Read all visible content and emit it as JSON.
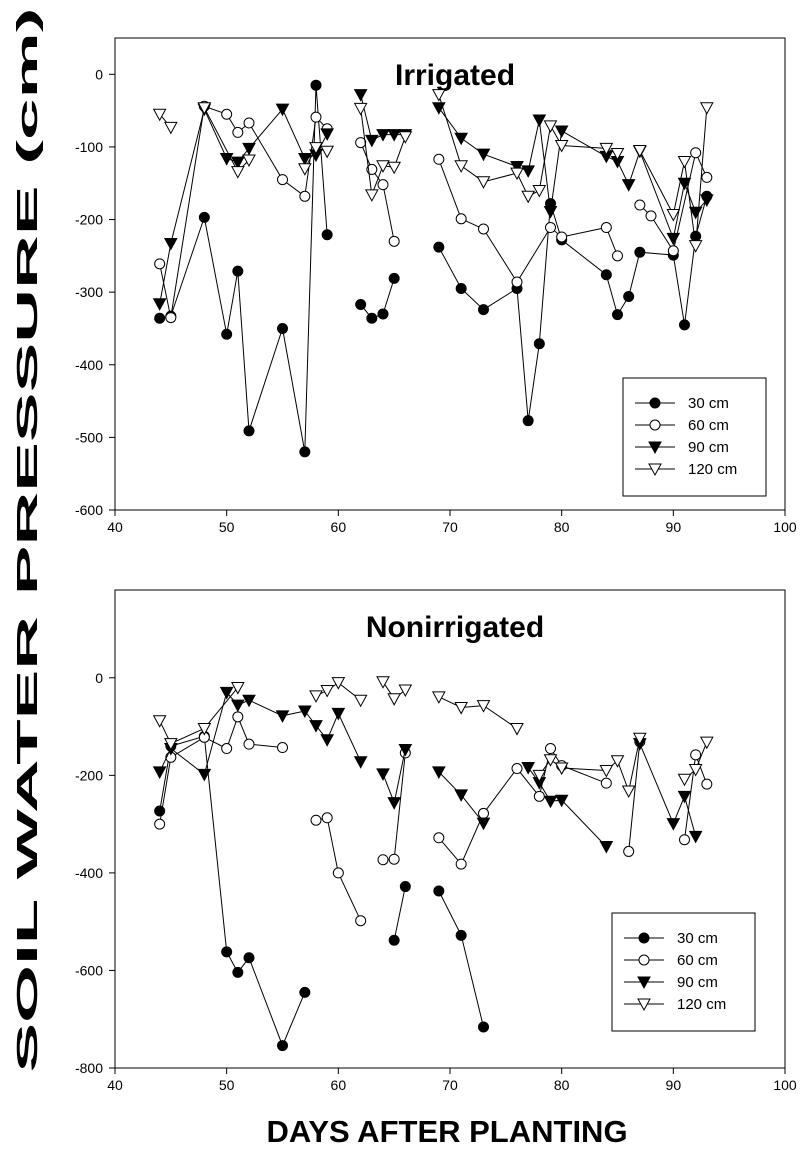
{
  "figure": {
    "ylabel": "SOIL WATER PRESSURE (cm)",
    "xlabel": "DAYS AFTER PLANTING"
  },
  "chart_data": [
    {
      "type": "line",
      "title": "Irrigated",
      "xlim": [
        40,
        100
      ],
      "ylim": [
        -600,
        50
      ],
      "xticks": [
        40,
        50,
        60,
        70,
        80,
        90,
        100
      ],
      "yticks": [
        -600,
        -500,
        -400,
        -300,
        -200,
        -100,
        0
      ],
      "legend": "bottom-right",
      "series": [
        {
          "name": "30 cm",
          "marker": "filled-circle",
          "segments": [
            [
              [
                44,
                -336
              ],
              [
                45,
                -333
              ],
              [
                48,
                -197
              ],
              [
                50,
                -358
              ],
              [
                51,
                -271
              ],
              [
                52,
                -491
              ],
              [
                55,
                -350
              ],
              [
                57,
                -520
              ],
              [
                58,
                -15
              ],
              [
                59,
                -221
              ]
            ],
            [
              [
                62,
                -317
              ],
              [
                63,
                -336
              ],
              [
                64,
                -330
              ],
              [
                65,
                -281
              ]
            ],
            [
              [
                69,
                -238
              ],
              [
                71,
                -295
              ],
              [
                73,
                -324
              ],
              [
                76,
                -295
              ],
              [
                77,
                -477
              ],
              [
                78,
                -371
              ],
              [
                79,
                -178
              ],
              [
                80,
                -228
              ],
              [
                84,
                -276
              ],
              [
                85,
                -331
              ],
              [
                86,
                -306
              ],
              [
                87,
                -245
              ],
              [
                90,
                -249
              ],
              [
                91,
                -345
              ],
              [
                92,
                -223
              ],
              [
                93,
                -168
              ]
            ]
          ]
        },
        {
          "name": "60 cm",
          "marker": "open-circle",
          "segments": [
            [
              [
                44,
                -261
              ],
              [
                45,
                -335
              ],
              [
                48,
                -44
              ],
              [
                50,
                -55
              ],
              [
                51,
                -80
              ],
              [
                52,
                -67
              ],
              [
                55,
                -145
              ],
              [
                57,
                -168
              ],
              [
                58,
                -59
              ],
              [
                59,
                -75
              ]
            ],
            [
              [
                62,
                -94
              ],
              [
                63,
                -131
              ],
              [
                64,
                -152
              ],
              [
                65,
                -230
              ]
            ],
            [
              [
                69,
                -117
              ],
              [
                71,
                -199
              ],
              [
                73,
                -213
              ],
              [
                76,
                -286
              ],
              [
                79,
                -211
              ],
              [
                80,
                -224
              ],
              [
                84,
                -211
              ],
              [
                85,
                -250
              ]
            ],
            [
              [
                87,
                -180
              ],
              [
                88,
                -195
              ],
              [
                90,
                -243
              ],
              [
                92,
                -108
              ],
              [
                93,
                -142
              ]
            ]
          ]
        },
        {
          "name": "90 cm",
          "marker": "filled-triangle",
          "segments": [
            [
              [
                44,
                -316
              ],
              [
                45,
                -233
              ],
              [
                48,
                -48
              ],
              [
                50,
                -116
              ],
              [
                51,
                -121
              ],
              [
                52,
                -102
              ],
              [
                55,
                -48
              ],
              [
                57,
                -116
              ],
              [
                58,
                -111
              ],
              [
                59,
                -82
              ]
            ],
            [
              [
                62,
                -28
              ],
              [
                63,
                -91
              ],
              [
                64,
                -83
              ],
              [
                65,
                -83
              ],
              [
                66,
                -83
              ]
            ],
            [
              [
                69,
                -46
              ],
              [
                71,
                -88
              ],
              [
                73,
                -110
              ],
              [
                76,
                -127
              ],
              [
                77,
                -133
              ],
              [
                78,
                -63
              ],
              [
                79,
                -189
              ],
              [
                80,
                -78
              ],
              [
                84,
                -113
              ],
              [
                85,
                -120
              ],
              [
                86,
                -152
              ],
              [
                87,
                -106
              ],
              [
                90,
                -226
              ],
              [
                91,
                -150
              ],
              [
                92,
                -190
              ],
              [
                93,
                -173
              ]
            ]
          ]
        },
        {
          "name": "120 cm",
          "marker": "open-triangle",
          "segments": [
            [
              [
                44,
                -55
              ],
              [
                45,
                -73
              ]
            ],
            [
              [
                48,
                -46
              ],
              [
                51,
                -134
              ],
              [
                52,
                -118
              ]
            ],
            [
              [
                57,
                -130
              ],
              [
                58,
                -101
              ],
              [
                59,
                -106
              ]
            ],
            [
              [
                62,
                -47
              ],
              [
                63,
                -166
              ],
              [
                64,
                -126
              ],
              [
                65,
                -128
              ],
              [
                66,
                -86
              ]
            ],
            [
              [
                69,
                -28
              ],
              [
                71,
                -126
              ],
              [
                73,
                -148
              ],
              [
                76,
                -136
              ],
              [
                77,
                -168
              ],
              [
                78,
                -160
              ],
              [
                79,
                -71
              ],
              [
                80,
                -98
              ],
              [
                84,
                -102
              ],
              [
                85,
                -109
              ]
            ],
            [
              [
                87,
                -105
              ],
              [
                90,
                -193
              ],
              [
                91,
                -120
              ],
              [
                92,
                -236
              ],
              [
                93,
                -46
              ]
            ]
          ]
        }
      ]
    },
    {
      "type": "line",
      "title": "Nonirrigated",
      "xlim": [
        40,
        100
      ],
      "ylim": [
        -800,
        180
      ],
      "xticks": [
        40,
        50,
        60,
        70,
        80,
        90,
        100
      ],
      "yticks": [
        -800,
        -600,
        -400,
        -200,
        0
      ],
      "legend": "bottom-right",
      "series": [
        {
          "name": "30 cm",
          "marker": "filled-circle",
          "segments": [
            [
              [
                44,
                -273
              ],
              [
                45,
                -140
              ],
              [
                48,
                -120
              ],
              [
                50,
                -562
              ],
              [
                51,
                -604
              ],
              [
                52,
                -574
              ],
              [
                55,
                -754
              ],
              [
                57,
                -645
              ]
            ],
            [
              [
                65,
                -538
              ],
              [
                66,
                -428
              ]
            ],
            [
              [
                69,
                -437
              ],
              [
                71,
                -528
              ],
              [
                73,
                -716
              ]
            ]
          ]
        },
        {
          "name": "60 cm",
          "marker": "open-circle",
          "segments": [
            [
              [
                44,
                -300
              ],
              [
                45,
                -163
              ],
              [
                48,
                -122
              ],
              [
                50,
                -145
              ],
              [
                51,
                -80
              ],
              [
                52,
                -136
              ],
              [
                55,
                -143
              ]
            ],
            [
              [
                58,
                -292
              ],
              [
                59,
                -287
              ],
              [
                60,
                -400
              ],
              [
                62,
                -498
              ]
            ],
            [
              [
                64,
                -373
              ],
              [
                65,
                -372
              ],
              [
                66,
                -154
              ]
            ],
            [
              [
                69,
                -328
              ],
              [
                71,
                -382
              ],
              [
                73,
                -278
              ],
              [
                76,
                -186
              ],
              [
                78,
                -243
              ],
              [
                79,
                -145
              ],
              [
                80,
                -180
              ],
              [
                84,
                -216
              ]
            ],
            [
              [
                86,
                -356
              ],
              [
                87,
                -131
              ]
            ],
            [
              [
                91,
                -332
              ],
              [
                92,
                -158
              ],
              [
                93,
                -218
              ]
            ]
          ]
        },
        {
          "name": "90 cm",
          "marker": "filled-triangle",
          "segments": [
            [
              [
                44,
                -193
              ],
              [
                45,
                -145
              ],
              [
                48,
                -198
              ],
              [
                50,
                -30
              ],
              [
                51,
                -56
              ],
              [
                52,
                -46
              ],
              [
                55,
                -78
              ],
              [
                57,
                -68
              ],
              [
                58,
                -98
              ],
              [
                59,
                -127
              ],
              [
                60,
                -73
              ],
              [
                62,
                -172
              ]
            ],
            [
              [
                64,
                -197
              ],
              [
                65,
                -256
              ],
              [
                66,
                -147
              ]
            ],
            [
              [
                69,
                -193
              ],
              [
                71,
                -240
              ],
              [
                73,
                -298
              ]
            ],
            [
              [
                77,
                -184
              ],
              [
                78,
                -215
              ],
              [
                79,
                -253
              ],
              [
                80,
                -251
              ],
              [
                84,
                -346
              ]
            ],
            [
              [
                87,
                -135
              ],
              [
                90,
                -299
              ],
              [
                91,
                -243
              ],
              [
                92,
                -325
              ]
            ]
          ]
        },
        {
          "name": "120 cm",
          "marker": "open-triangle",
          "segments": [
            [
              [
                44,
                -88
              ],
              [
                45,
                -135
              ],
              [
                48,
                -104
              ],
              [
                51,
                -20
              ]
            ],
            [
              [
                58,
                -37
              ],
              [
                59,
                -26
              ],
              [
                60,
                -10
              ],
              [
                62,
                -46
              ]
            ],
            [
              [
                64,
                -8
              ],
              [
                65,
                -43
              ],
              [
                66,
                -25
              ]
            ],
            [
              [
                69,
                -39
              ],
              [
                71,
                -61
              ],
              [
                73,
                -57
              ],
              [
                76,
                -104
              ]
            ],
            [
              [
                78,
                -200
              ],
              [
                79,
                -168
              ],
              [
                80,
                -185
              ],
              [
                84,
                -190
              ],
              [
                85,
                -170
              ],
              [
                86,
                -232
              ],
              [
                87,
                -124
              ]
            ],
            [
              [
                91,
                -208
              ],
              [
                92,
                -188
              ],
              [
                93,
                -132
              ]
            ]
          ]
        }
      ]
    }
  ]
}
